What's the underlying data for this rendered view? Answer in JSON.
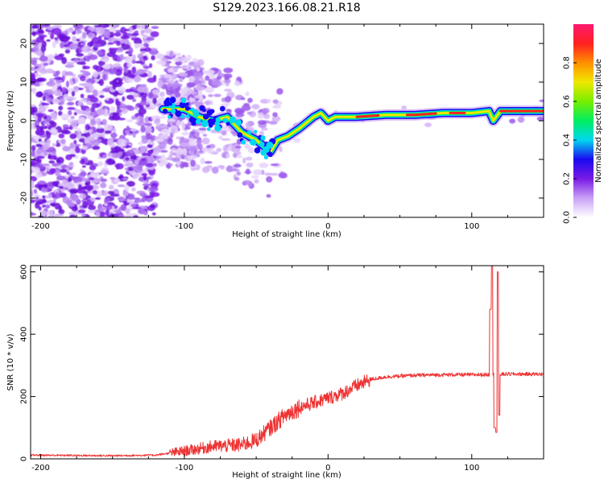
{
  "title": "S129.2023.166.08.21.R18",
  "chart_data": [
    {
      "type": "heatmap",
      "xlabel": "Height of straight line (km)",
      "ylabel": "Frequency (Hz)",
      "xlim": [
        -207,
        150
      ],
      "ylim": [
        -25,
        25
      ],
      "xticks": [
        -200,
        -100,
        0,
        100
      ],
      "yticks": [
        -20,
        -10,
        0,
        10,
        20
      ],
      "xtick_labels": [
        "-200",
        "-100",
        "0",
        "100"
      ],
      "ytick_labels": [
        "-20",
        "-10",
        "0",
        "10",
        "20"
      ],
      "ridge": [
        {
          "x": -115,
          "f": 3
        },
        {
          "x": -100,
          "f": 3
        },
        {
          "x": -90,
          "f": 1
        },
        {
          "x": -80,
          "f": 0
        },
        {
          "x": -70,
          "f": 1
        },
        {
          "x": -60,
          "f": -3
        },
        {
          "x": -50,
          "f": -5
        },
        {
          "x": -40,
          "f": -8
        },
        {
          "x": -35,
          "f": -5
        },
        {
          "x": -28,
          "f": -4
        },
        {
          "x": -20,
          "f": -2
        },
        {
          "x": -10,
          "f": 1
        },
        {
          "x": -5,
          "f": 2
        },
        {
          "x": 0,
          "f": 0
        },
        {
          "x": 5,
          "f": 1
        },
        {
          "x": 10,
          "f": 1
        },
        {
          "x": 20,
          "f": 1
        },
        {
          "x": 40,
          "f": 1.5
        },
        {
          "x": 60,
          "f": 1.5
        },
        {
          "x": 80,
          "f": 2
        },
        {
          "x": 100,
          "f": 2
        },
        {
          "x": 112,
          "f": 2.5
        },
        {
          "x": 115,
          "f": 0
        },
        {
          "x": 120,
          "f": 2.5
        },
        {
          "x": 150,
          "f": 2.5
        }
      ],
      "colorbar": {
        "label": "Normalized spectral amplitude",
        "range": [
          0,
          1
        ],
        "ticks": [
          0.0,
          0.2,
          0.4,
          0.6,
          0.8
        ],
        "tick_labels": [
          "0.0",
          "0.2",
          "0.4",
          "0.6",
          "0.8"
        ],
        "colors": [
          "#ffffff",
          "#c9a0f6",
          "#7a1ae6",
          "#1a0af0",
          "#00d8f0",
          "#00ee60",
          "#78ee00",
          "#f0e800",
          "#ff9000",
          "#ff2020",
          "#ff1a70"
        ]
      }
    },
    {
      "type": "line",
      "xlabel": "Height of straight line (km)",
      "ylabel": "SNR (10 * v/v)",
      "xlim": [
        -207,
        150
      ],
      "ylim": [
        0,
        620
      ],
      "xticks": [
        -200,
        -100,
        0,
        100
      ],
      "yticks": [
        0,
        200,
        400,
        600
      ],
      "xtick_labels": [
        "-200",
        "-100",
        "0",
        "100"
      ],
      "ytick_labels": [
        "0",
        "200",
        "400",
        "600"
      ],
      "series": [
        {
          "name": "SNR",
          "color": "#ee3333",
          "trend": [
            {
              "x": -207,
              "y": 12
            },
            {
              "x": -150,
              "y": 10
            },
            {
              "x": -120,
              "y": 12
            },
            {
              "x": -100,
              "y": 25
            },
            {
              "x": -80,
              "y": 40
            },
            {
              "x": -60,
              "y": 45
            },
            {
              "x": -50,
              "y": 60
            },
            {
              "x": -40,
              "y": 100
            },
            {
              "x": -30,
              "y": 140
            },
            {
              "x": -20,
              "y": 165
            },
            {
              "x": -10,
              "y": 180
            },
            {
              "x": 0,
              "y": 195
            },
            {
              "x": 10,
              "y": 210
            },
            {
              "x": 20,
              "y": 235
            },
            {
              "x": 30,
              "y": 255
            },
            {
              "x": 40,
              "y": 263
            },
            {
              "x": 60,
              "y": 268
            },
            {
              "x": 80,
              "y": 270
            },
            {
              "x": 100,
              "y": 270
            },
            {
              "x": 110,
              "y": 270
            },
            {
              "x": 125,
              "y": 272
            },
            {
              "x": 150,
              "y": 272
            }
          ],
          "spikes": [
            {
              "x": 113,
              "y": 480
            },
            {
              "x": 114,
              "y": 620
            },
            {
              "x": 116,
              "y": 100
            },
            {
              "x": 117,
              "y": 85
            },
            {
              "x": 118,
              "y": 600
            },
            {
              "x": 119,
              "y": 140
            }
          ]
        }
      ]
    }
  ]
}
